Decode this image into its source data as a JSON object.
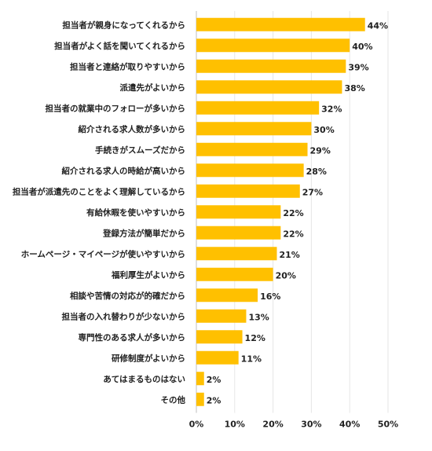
{
  "chart_data": {
    "type": "bar",
    "orientation": "horizontal",
    "title": "",
    "xlabel": "",
    "ylabel": "",
    "xlim": [
      0,
      50
    ],
    "ticks": [
      0,
      10,
      20,
      30,
      40,
      50
    ],
    "tick_labels": [
      "0%",
      "10%",
      "20%",
      "30%",
      "40%",
      "50%"
    ],
    "grid": true,
    "bar_color": "#FFC000",
    "categories": [
      "担当者が親身になってくれるから",
      "担当者がよく話を聞いてくれるから",
      "担当者と連絡が取りやすいから",
      "派遣先がよいから",
      "担当者の就業中のフォローが多いから",
      "紹介される求人数が多いから",
      "手続きがスムーズだから",
      "紹介される求人の時給が高いから",
      "担当者が派遣先のことをよく理解しているから",
      "有給休暇を使いやすいから",
      "登録方法が簡単だから",
      "ホームページ・マイページが使いやすいから",
      "福利厚生がよいから",
      "相談や苦情の対応が的確だから",
      "担当者の入れ替わりが少ないから",
      "専門性のある求人が多いから",
      "研修制度がよいから",
      "あてはまるものはない",
      "その他"
    ],
    "values": [
      44,
      40,
      39,
      38,
      32,
      30,
      29,
      28,
      27,
      22,
      22,
      21,
      20,
      16,
      13,
      12,
      11,
      2,
      2
    ],
    "value_labels": [
      "44%",
      "40%",
      "39%",
      "38%",
      "32%",
      "30%",
      "29%",
      "28%",
      "27%",
      "22%",
      "22%",
      "21%",
      "20%",
      "16%",
      "13%",
      "12%",
      "11%",
      "2%",
      "2%"
    ]
  }
}
